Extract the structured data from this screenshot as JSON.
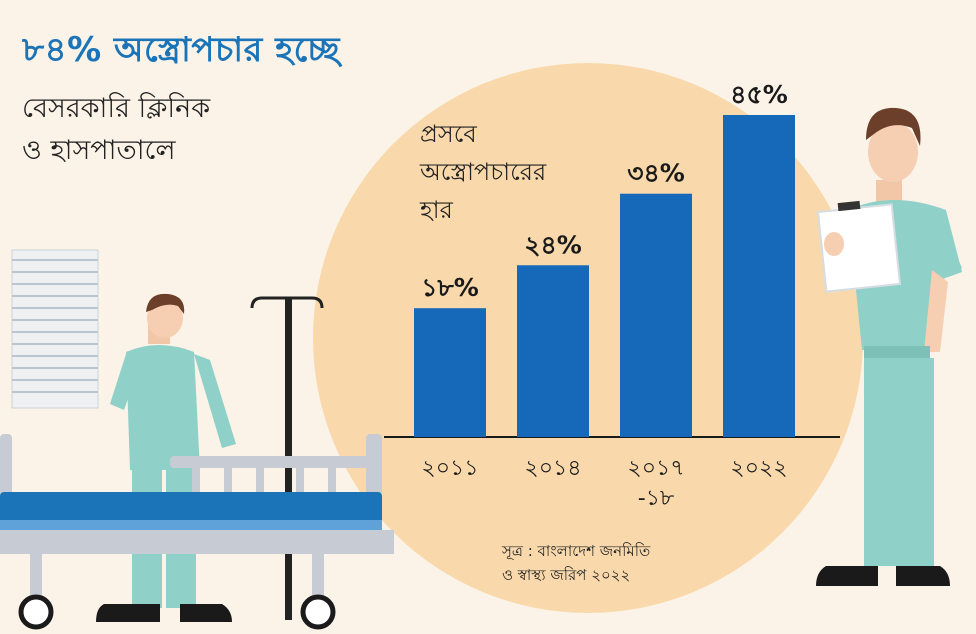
{
  "header": {
    "title": "৮৪% অস্ত্রোপচার হচ্ছে",
    "subtitle_line1": "বেসরকারি ক্লিনিক",
    "subtitle_line2": "ও হাসপাতালে"
  },
  "colors": {
    "background": "#fbf3e8",
    "circle": "#f9d9ab",
    "bar": "#1668b8",
    "accent": "#1b74b8",
    "scrubs": "#8fd0c8"
  },
  "illustration": {
    "elements": [
      "nurse-with-bed",
      "hospital-bed",
      "iv-stand",
      "window-blind",
      "doctor-with-clipboard"
    ]
  },
  "source": {
    "line1": "সূত্র : বাংলাদেশ জনমিতি",
    "line2": "ও স্বাস্থ্য জরিপ ২০২২"
  },
  "chart_data": {
    "type": "bar",
    "title": "প্রসবে অস্ত্রোপচারের হার",
    "title_lines": [
      "প্রসবে",
      "অস্ত্রোপচারের",
      "হার"
    ],
    "categories": [
      "২০১১",
      "২০১৪",
      "২০১৭ -১৮",
      "২০২২"
    ],
    "category_lines": [
      [
        "২০১১"
      ],
      [
        "২০১৪"
      ],
      [
        "২০১৭",
        "-১৮"
      ],
      [
        "২০২২"
      ]
    ],
    "values": [
      18,
      24,
      34,
      45
    ],
    "value_labels": [
      "১৮%",
      "২৪%",
      "৩৪%",
      "৪৫%"
    ],
    "unit": "%",
    "ylim": [
      0,
      45
    ],
    "grid": false,
    "legend": "none"
  }
}
